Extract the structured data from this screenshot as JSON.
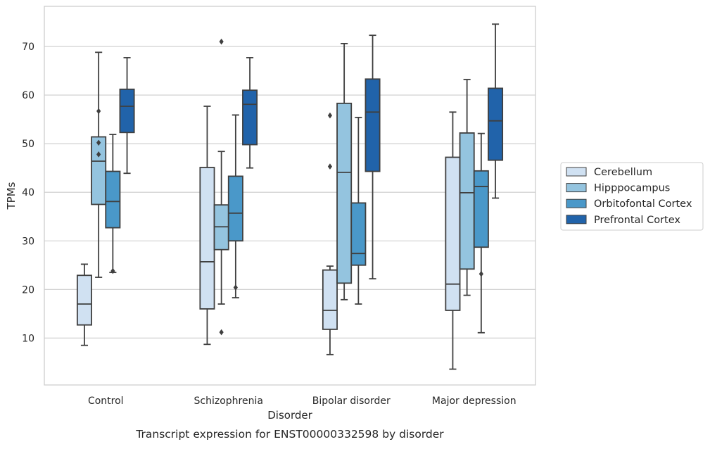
{
  "chart_data": {
    "type": "box",
    "title": "",
    "caption": "Transcript expression for ENST00000332598 by disorder",
    "xlabel": "Disorder",
    "ylabel": "TPMs",
    "ylim": [
      0,
      78
    ],
    "yticks": [
      10,
      20,
      30,
      40,
      50,
      60,
      70
    ],
    "grid": "horizontal",
    "legend_position": "right",
    "categories": [
      "Control",
      "Schizophrenia",
      "Bipolar disorder",
      "Major depression"
    ],
    "series": [
      {
        "name": "Cerebellum",
        "color": "#d0e1f2",
        "boxes": [
          {
            "whisker_low": 8.5,
            "q1": 12.7,
            "median": 17.0,
            "q3": 22.9,
            "whisker_high": 25.2,
            "outliers": []
          },
          {
            "whisker_low": 8.7,
            "q1": 16.0,
            "median": 25.7,
            "q3": 45.1,
            "whisker_high": 57.7,
            "outliers": []
          },
          {
            "whisker_low": 6.6,
            "q1": 11.8,
            "median": 15.7,
            "q3": 24.0,
            "whisker_high": 24.8,
            "outliers": [
              45.3,
              55.8
            ]
          },
          {
            "whisker_low": 3.6,
            "q1": 15.7,
            "median": 21.1,
            "q3": 47.2,
            "whisker_high": 56.5,
            "outliers": []
          }
        ]
      },
      {
        "name": "Hipppocampus",
        "color": "#94c4df",
        "boxes": [
          {
            "whisker_low": 22.5,
            "q1": 37.5,
            "median": 46.4,
            "q3": 51.4,
            "whisker_high": 68.8,
            "outliers": [
              47.8,
              50.2,
              56.7
            ]
          },
          {
            "whisker_low": 17.0,
            "q1": 28.2,
            "median": 32.9,
            "q3": 37.4,
            "whisker_high": 48.4,
            "outliers": [
              11.2,
              71.0
            ]
          },
          {
            "whisker_low": 17.9,
            "q1": 21.3,
            "median": 44.1,
            "q3": 58.3,
            "whisker_high": 70.6,
            "outliers": []
          },
          {
            "whisker_low": 18.8,
            "q1": 24.2,
            "median": 39.9,
            "q3": 52.2,
            "whisker_high": 63.2,
            "outliers": []
          }
        ]
      },
      {
        "name": "Orbitofontal Cortex",
        "color": "#4a98c9",
        "boxes": [
          {
            "whisker_low": 23.5,
            "q1": 32.7,
            "median": 38.1,
            "q3": 44.3,
            "whisker_high": 51.9,
            "outliers": [
              23.8
            ]
          },
          {
            "whisker_low": 18.3,
            "q1": 30.0,
            "median": 35.7,
            "q3": 43.3,
            "whisker_high": 55.9,
            "outliers": [
              20.4
            ]
          },
          {
            "whisker_low": 17.0,
            "q1": 25.0,
            "median": 27.4,
            "q3": 37.8,
            "whisker_high": 55.4,
            "outliers": []
          },
          {
            "whisker_low": 11.1,
            "q1": 28.7,
            "median": 41.2,
            "q3": 44.4,
            "whisker_high": 52.1,
            "outliers": [
              23.2
            ]
          }
        ]
      },
      {
        "name": "Prefrontal Cortex",
        "color": "#2163aa",
        "boxes": [
          {
            "whisker_low": 43.9,
            "q1": 52.3,
            "median": 57.7,
            "q3": 61.2,
            "whisker_high": 67.7,
            "outliers": []
          },
          {
            "whisker_low": 45.0,
            "q1": 49.8,
            "median": 58.1,
            "q3": 61.0,
            "whisker_high": 67.7,
            "outliers": []
          },
          {
            "whisker_low": 22.2,
            "q1": 44.3,
            "median": 56.5,
            "q3": 63.3,
            "whisker_high": 72.3,
            "outliers": []
          },
          {
            "whisker_low": 38.8,
            "q1": 46.6,
            "median": 54.7,
            "q3": 61.4,
            "whisker_high": 74.6,
            "outliers": []
          }
        ]
      }
    ]
  }
}
